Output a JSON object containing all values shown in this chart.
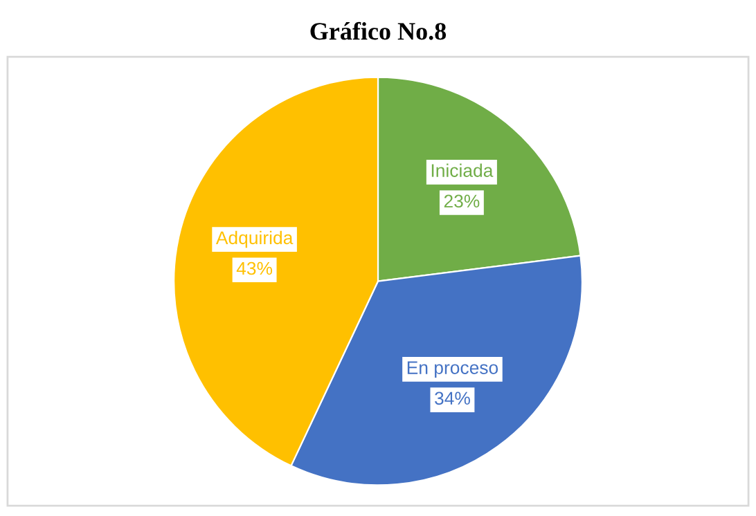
{
  "chart_data": {
    "type": "pie",
    "title": "Gráfico No.8",
    "categories": [
      "Iniciada",
      "En proceso",
      "Adquirida"
    ],
    "values": [
      23,
      34,
      43
    ],
    "value_labels": [
      "23%",
      "34%",
      "43%"
    ],
    "colors": [
      "#70ad47",
      "#4472c4",
      "#ffc000"
    ]
  }
}
